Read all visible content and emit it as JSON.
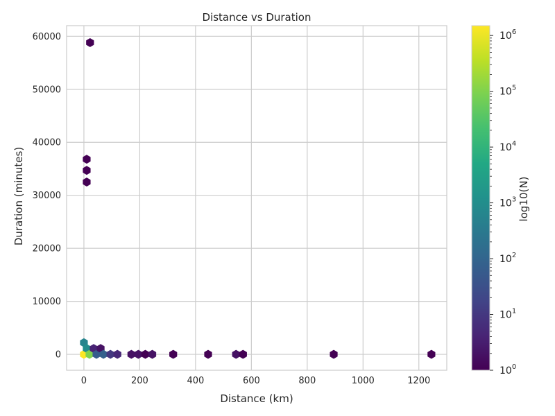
{
  "chart_data": {
    "type": "hexbin",
    "title": "Distance vs Duration",
    "xlabel": "Distance (km)",
    "ylabel": "Duration (minutes)",
    "xlim": [
      -62,
      1300
    ],
    "ylim": [
      -3000,
      62000
    ],
    "xticks": [
      0,
      200,
      400,
      600,
      800,
      1000,
      1200
    ],
    "yticks": [
      0,
      10000,
      20000,
      30000,
      40000,
      50000,
      60000
    ],
    "grid": true,
    "colormap": "viridis",
    "colorbar": {
      "label": "log10(N)",
      "scale": "log",
      "range": [
        1,
        1500000
      ],
      "major_exponents": [
        0,
        1,
        2,
        3,
        4,
        5,
        6
      ],
      "tick_base": "10"
    },
    "bins": [
      {
        "x": 0,
        "y": 0,
        "count": 1500000
      },
      {
        "x": 0,
        "y": 2200,
        "count": 600
      },
      {
        "x": 10,
        "y": 1100,
        "count": 1000
      },
      {
        "x": 20,
        "y": 0,
        "count": 100000
      },
      {
        "x": 35,
        "y": 1100,
        "count": 4
      },
      {
        "x": 45,
        "y": 0,
        "count": 60
      },
      {
        "x": 60,
        "y": 1100,
        "count": 2
      },
      {
        "x": 70,
        "y": 0,
        "count": 80
      },
      {
        "x": 95,
        "y": 0,
        "count": 10
      },
      {
        "x": 120,
        "y": 0,
        "count": 5
      },
      {
        "x": 170,
        "y": 0,
        "count": 2
      },
      {
        "x": 195,
        "y": 0,
        "count": 2
      },
      {
        "x": 220,
        "y": 0,
        "count": 1
      },
      {
        "x": 245,
        "y": 0,
        "count": 2
      },
      {
        "x": 320,
        "y": 0,
        "count": 1
      },
      {
        "x": 445,
        "y": 0,
        "count": 1
      },
      {
        "x": 545,
        "y": 0,
        "count": 2
      },
      {
        "x": 570,
        "y": 0,
        "count": 1
      },
      {
        "x": 895,
        "y": 0,
        "count": 1
      },
      {
        "x": 1245,
        "y": 0,
        "count": 1
      },
      {
        "x": 10,
        "y": 32500,
        "count": 1
      },
      {
        "x": 10,
        "y": 34700,
        "count": 1
      },
      {
        "x": 10,
        "y": 36800,
        "count": 1
      },
      {
        "x": 22,
        "y": 58800,
        "count": 1
      }
    ]
  }
}
